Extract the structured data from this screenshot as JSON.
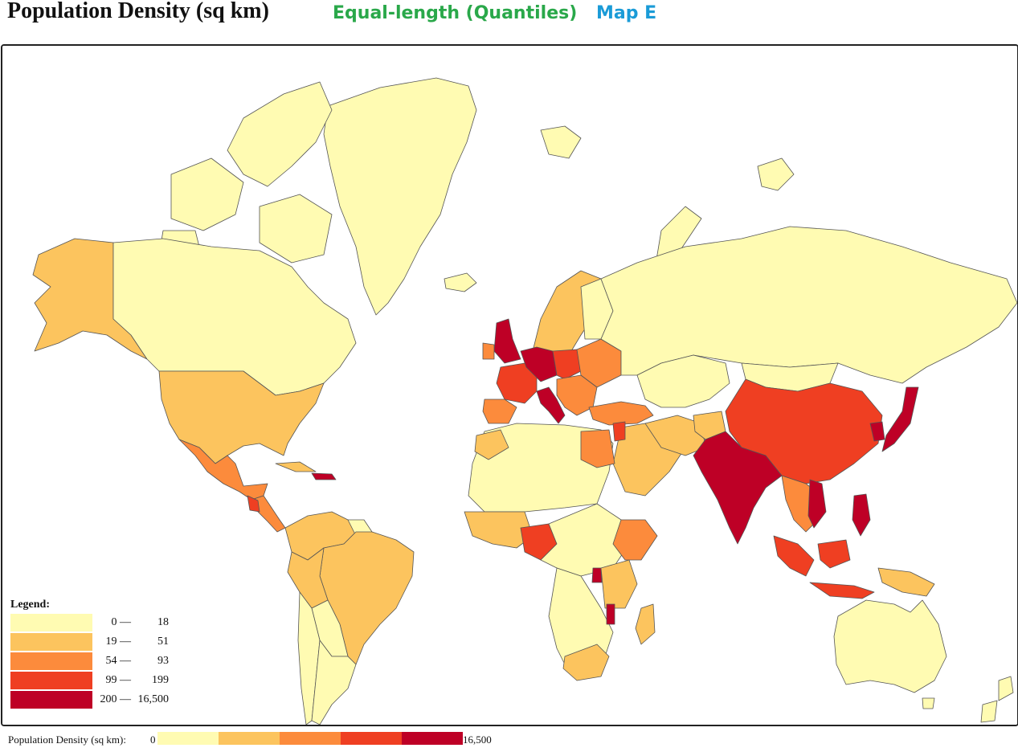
{
  "header": {
    "title": "Population Density (sq km)",
    "subtitle": "Equal-length (Quantiles)",
    "map_label": "Map E"
  },
  "colors": {
    "class1": "#fffbb2",
    "class2": "#fcc45e",
    "class3": "#fc8b3c",
    "class4": "#ef3f22",
    "class5": "#be0026",
    "ocean": "#ffffff",
    "border": "#555555"
  },
  "legend": {
    "title": "Legend:",
    "classes": [
      {
        "low": "0 —",
        "high": "18"
      },
      {
        "low": "19 —",
        "high": "51"
      },
      {
        "low": "54 —",
        "high": "93"
      },
      {
        "low": "99 —",
        "high": "199"
      },
      {
        "low": "200 —",
        "high": "16,500"
      }
    ]
  },
  "scale_bar": {
    "label": "Population Density (sq km):",
    "min": "0",
    "max": "16,500"
  }
}
